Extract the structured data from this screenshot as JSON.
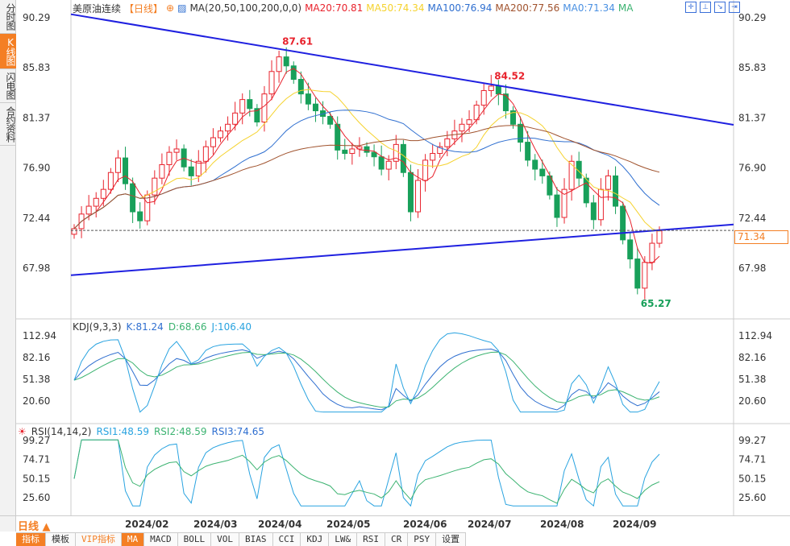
{
  "sidebar": {
    "tabs": [
      {
        "label": "分时图"
      },
      {
        "label": "K线图",
        "active": true
      },
      {
        "label": "闪电图"
      },
      {
        "label": "合约资料"
      }
    ]
  },
  "header": {
    "symbol": "美原油连续",
    "period": "【日线】",
    "ma_label": "MA(20,50,100,200,0,0)",
    "ma20": "MA20:70.81",
    "ma50": "MA50:74.34",
    "ma100": "MA100:76.94",
    "ma200": "MA200:77.56",
    "ma0": "MA0:71.34",
    "ma_tail": "MA"
  },
  "colors": {
    "up": "#e8232d",
    "down": "#18a05a",
    "ma20": "#e8232d",
    "ma50": "#f5d22d",
    "ma100": "#2f6fd0",
    "ma200": "#a0522d",
    "trend": "#1f20e0",
    "accent": "#f47f24"
  },
  "chart_data": {
    "type": "candlestick",
    "price_axis": {
      "ylim": [
        67.98,
        90.29
      ],
      "ticks": [
        "90.29",
        "85.83",
        "81.37",
        "76.90",
        "72.44",
        "67.98"
      ]
    },
    "closes": [
      71.5,
      72.8,
      73.5,
      74.2,
      75.0,
      76.5,
      77.8,
      75.5,
      73.0,
      72.2,
      74.5,
      76.0,
      77.2,
      78.3,
      78.6,
      77.0,
      76.2,
      77.5,
      78.8,
      79.6,
      80.2,
      80.8,
      81.8,
      83.0,
      82.2,
      81.0,
      83.5,
      85.5,
      86.8,
      86.0,
      84.8,
      83.5,
      82.6,
      82.0,
      81.5,
      80.8,
      78.5,
      78.2,
      78.6,
      78.8,
      78.3,
      77.9,
      76.8,
      77.5,
      79.0,
      76.5,
      73.0,
      75.8,
      77.6,
      78.2,
      78.8,
      79.5,
      80.2,
      80.8,
      81.2,
      82.5,
      83.8,
      84.2,
      83.5,
      82.0,
      80.8,
      79.2,
      77.6,
      76.8,
      76.2,
      74.5,
      72.5,
      75.0,
      77.5,
      76.0,
      73.8,
      72.3,
      75.0,
      76.2,
      73.5,
      70.5,
      68.8,
      66.2,
      68.5,
      70.2,
      71.3
    ],
    "annotations": [
      {
        "label": "87.61",
        "value": 87.61,
        "index": 28
      },
      {
        "label": "84.52",
        "value": 84.52,
        "index": 57
      },
      {
        "label": "65.27",
        "value": 65.27,
        "index": 77
      }
    ],
    "current_price": "71.34",
    "trendlines": [
      {
        "name": "upper",
        "from": [
          0,
          90.6
        ],
        "to": [
          "end",
          80.75
        ]
      },
      {
        "name": "lower",
        "from": [
          0,
          67.35
        ],
        "to": [
          "end",
          71.87
        ]
      }
    ],
    "x_ticks": [
      "2024/02",
      "2024/03",
      "2024/04",
      "2024/05",
      "2024/06",
      "2024/07",
      "2024/08",
      "2024/09"
    ],
    "kdj": {
      "label": "KDJ(9,3,3)",
      "k": "K:81.24",
      "d": "D:68.66",
      "j": "J:106.40",
      "ticks": [
        "112.94",
        "82.16",
        "51.38",
        "20.60"
      ],
      "ylim": [
        20.6,
        112.94
      ]
    },
    "rsi": {
      "label": "RSI(14,14,2)",
      "r1": "RSI1:48.59",
      "r2": "RSI2:48.59",
      "r3": "RSI3:74.65",
      "ticks": [
        "99.27",
        "74.71",
        "50.15",
        "25.60"
      ],
      "ylim": [
        25.6,
        99.27
      ]
    }
  },
  "footer": {
    "period_button": "日线 ▲",
    "tabs": [
      "指标",
      "模板",
      "VIP指标",
      "MA",
      "MACD",
      "BOLL",
      "VOL",
      "BIAS",
      "CCI",
      "KDJ",
      "LW&",
      "RSI",
      "CR",
      "PSY",
      "设置"
    ]
  }
}
